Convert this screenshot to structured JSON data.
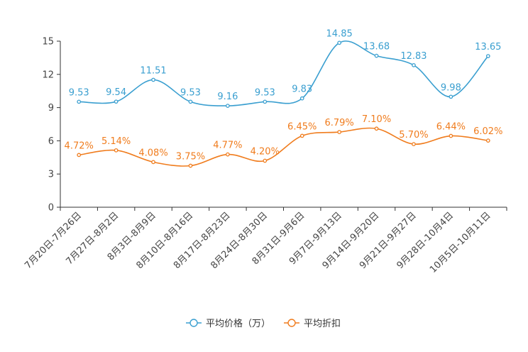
{
  "chart_data": {
    "type": "line",
    "title": "",
    "categories": [
      "7月20日-7月26日",
      "7月27日-8月2日",
      "8月3日-8月9日",
      "8月10日-8月16日",
      "8月17日-8月23日",
      "8月24日-8月30日",
      "8月31日-9月6日",
      "9月7日-9月13日",
      "9月14日-9月20日",
      "9月21日-9月27日",
      "9月28日-10月4日",
      "10月5日-10月11日"
    ],
    "y_ticks": [
      "0",
      "3",
      "6",
      "9",
      "12",
      "15"
    ],
    "ylim": [
      0,
      15
    ],
    "grid": false,
    "legend_position": "bottom-center",
    "series": [
      {
        "name": "平均价格（万）",
        "color": "#3a9fd0",
        "values": [
          9.53,
          9.54,
          11.51,
          9.53,
          9.16,
          9.53,
          9.83,
          14.85,
          13.68,
          12.83,
          9.98,
          13.65
        ],
        "labels": [
          "9.53",
          "9.54",
          "11.51",
          "9.53",
          "9.16",
          "9.53",
          "9.83",
          "14.85",
          "13.68",
          "12.83",
          "9.98",
          "13.65"
        ]
      },
      {
        "name": "平均折扣",
        "color": "#f07c1d",
        "values": [
          4.72,
          5.14,
          4.08,
          3.75,
          4.77,
          4.2,
          6.45,
          6.79,
          7.1,
          5.7,
          6.44,
          6.02
        ],
        "labels": [
          "4.72%",
          "5.14%",
          "4.08%",
          "3.75%",
          "4.77%",
          "4.20%",
          "6.45%",
          "6.79%",
          "7.10%",
          "5.70%",
          "6.44%",
          "6.02%"
        ]
      }
    ]
  }
}
